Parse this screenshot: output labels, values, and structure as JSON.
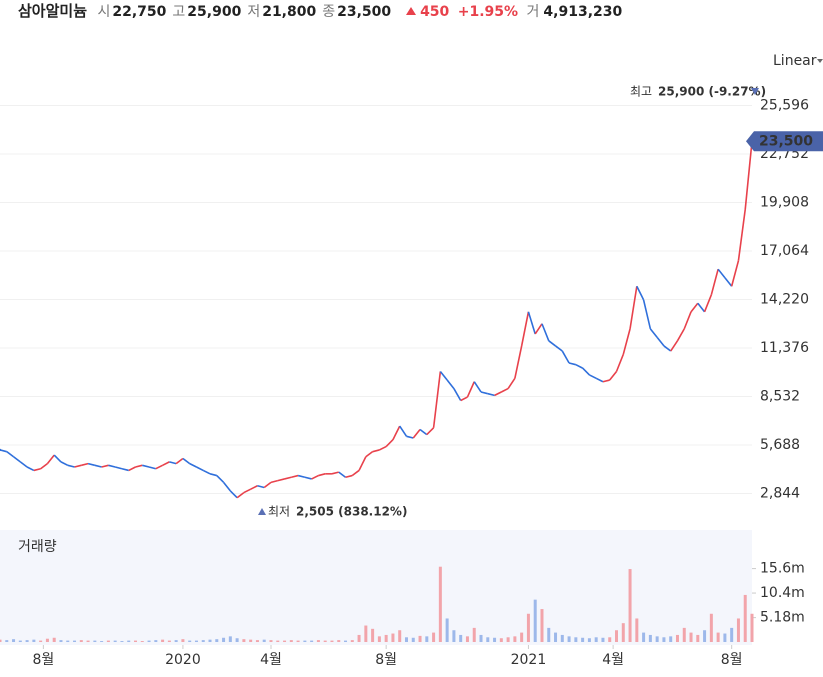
{
  "header": {
    "name": "삼아알미늄",
    "items": [
      {
        "label": "시",
        "value": "22,750"
      },
      {
        "label": "고",
        "value": "25,900"
      },
      {
        "label": "저",
        "value": "21,800"
      },
      {
        "label": "종",
        "value": "23,500"
      }
    ],
    "change": "450",
    "change_pct": "+1.95%",
    "volume_label": "거",
    "volume": "4,913,230"
  },
  "scale_mode": "Linear",
  "chart_data": {
    "type": "line",
    "up_color": "#e8414b",
    "down_color": "#2f6fdb",
    "high_label": "최고",
    "high_text": "25,900 (-9.27%)",
    "low_label": "최저",
    "low_text": "2,505 (838.12%)",
    "last_price_label": "23,500",
    "values": [
      5400,
      5300,
      5000,
      4700,
      4400,
      4200,
      4300,
      4600,
      5100,
      4700,
      4500,
      4400,
      4500,
      4600,
      4500,
      4400,
      4500,
      4400,
      4300,
      4200,
      4400,
      4500,
      4400,
      4300,
      4500,
      4700,
      4600,
      4900,
      4600,
      4400,
      4200,
      4000,
      3900,
      3500,
      3000,
      2600,
      2900,
      3100,
      3300,
      3200,
      3500,
      3600,
      3700,
      3800,
      3900,
      3800,
      3700,
      3900,
      4000,
      4000,
      4100,
      3800,
      3900,
      4200,
      5000,
      5300,
      5400,
      5600,
      6000,
      6800,
      6200,
      6100,
      6600,
      6300,
      6700,
      10000,
      9500,
      9000,
      8300,
      8500,
      9400,
      8800,
      8700,
      8600,
      8800,
      9000,
      9600,
      11500,
      13500,
      12200,
      12800,
      11800,
      11500,
      11200,
      10500,
      10400,
      10200,
      9800,
      9600,
      9400,
      9500,
      10000,
      11000,
      12500,
      15000,
      14200,
      12500,
      12000,
      11500,
      11200,
      11800,
      12500,
      13500,
      14000,
      13500,
      14500,
      16000,
      15500,
      15000,
      16500,
      19500,
      23500
    ],
    "ylim": [
      1000,
      26800
    ],
    "yticks": [
      {
        "value": 2844,
        "label": "2,844"
      },
      {
        "value": 5688,
        "label": "5,688"
      },
      {
        "value": 8532,
        "label": "8,532"
      },
      {
        "value": 11376,
        "label": "11,376"
      },
      {
        "value": 14220,
        "label": "14,220"
      },
      {
        "value": 17064,
        "label": "17,064"
      },
      {
        "value": 19908,
        "label": "19,908"
      },
      {
        "value": 22752,
        "label": "22,752"
      },
      {
        "value": 25596,
        "label": "25,596"
      }
    ],
    "xlim": [
      0,
      111
    ],
    "xticks": [
      {
        "value": 6.4,
        "label": "8월"
      },
      {
        "value": 27,
        "label": "2020"
      },
      {
        "value": 40,
        "label": "4월"
      },
      {
        "value": 57,
        "label": "8월"
      },
      {
        "value": 78,
        "label": "2021"
      },
      {
        "value": 90.5,
        "label": "4월"
      },
      {
        "value": 108,
        "label": "8월"
      }
    ],
    "volume_title": "거래량",
    "volume": [
      500000,
      400000,
      600000,
      300000,
      400000,
      500000,
      300000,
      700000,
      900000,
      400000,
      300000,
      300000,
      400000,
      300000,
      300000,
      200000,
      300000,
      300000,
      200000,
      300000,
      300000,
      200000,
      300000,
      400000,
      500000,
      300000,
      400000,
      600000,
      300000,
      300000,
      400000,
      500000,
      600000,
      900000,
      1200000,
      800000,
      600000,
      500000,
      400000,
      500000,
      400000,
      300000,
      300000,
      400000,
      300000,
      300000,
      300000,
      400000,
      300000,
      300000,
      400000,
      300000,
      400000,
      1500000,
      3500000,
      2800000,
      1200000,
      1500000,
      1800000,
      2500000,
      1000000,
      900000,
      1300000,
      1200000,
      2000000,
      16000000,
      5000000,
      2500000,
      1500000,
      1200000,
      3000000,
      1500000,
      1000000,
      900000,
      800000,
      1000000,
      1200000,
      2000000,
      6000000,
      9000000,
      7000000,
      3000000,
      2000000,
      1500000,
      1200000,
      1000000,
      900000,
      800000,
      1000000,
      900000,
      1000000,
      2500000,
      4000000,
      15500000,
      5000000,
      2000000,
      1500000,
      1200000,
      1000000,
      1200000,
      1500000,
      3000000,
      2000000,
      1500000,
      2500000,
      6000000,
      2000000,
      1800000,
      3000000,
      5000000,
      10000000,
      6000000
    ],
    "vlim": [
      0,
      23800000
    ],
    "vticks": [
      {
        "value": 5180000,
        "label": "5.18m"
      },
      {
        "value": 10400000,
        "label": "10.4m"
      },
      {
        "value": 15600000,
        "label": "15.6m"
      }
    ],
    "grid": true
  }
}
